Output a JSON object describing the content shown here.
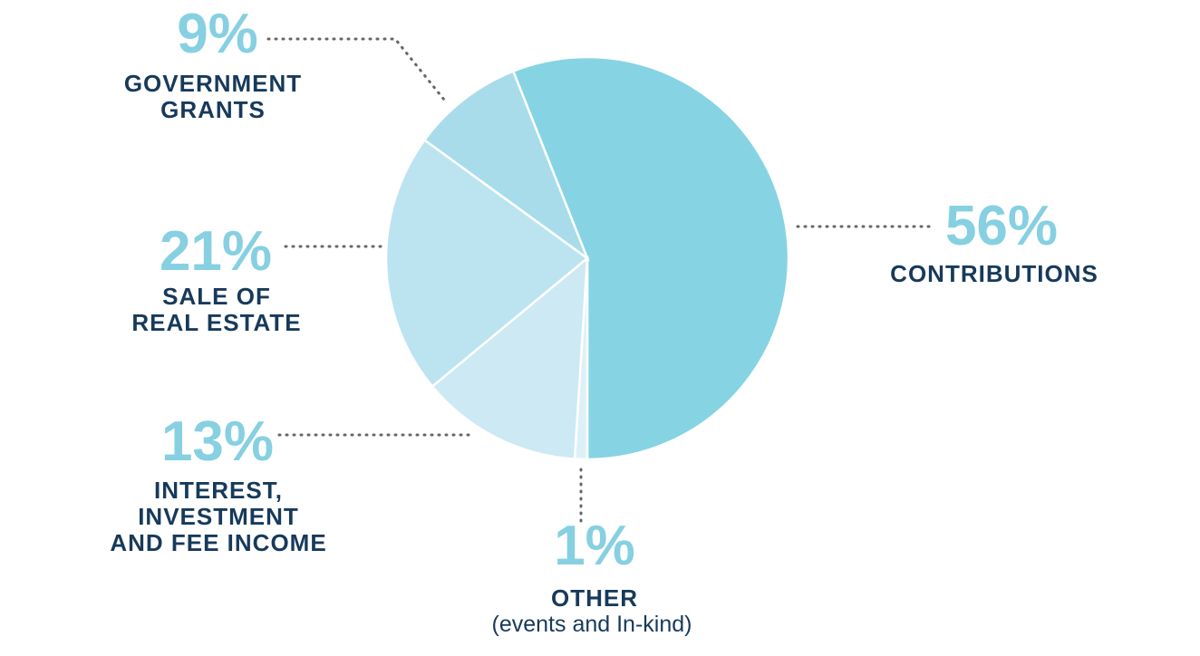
{
  "chart_data": {
    "type": "pie",
    "categories": [
      "CONTRIBUTIONS",
      "OTHER",
      "INTEREST,\nINVESTMENT\nAND FEE INCOME",
      "SALE OF\nREAL ESTATE",
      "GOVERNMENT\nGRANTS"
    ],
    "values": [
      56,
      1,
      13,
      21,
      9
    ],
    "value_labels": [
      "56%",
      "1%",
      "13%",
      "21%",
      "9%"
    ],
    "colors": [
      "#86d3e3",
      "#def0f7",
      "#cde9f3",
      "#bce4f0",
      "#a9dcea"
    ],
    "annotation": "(events and In-kind)"
  }
}
